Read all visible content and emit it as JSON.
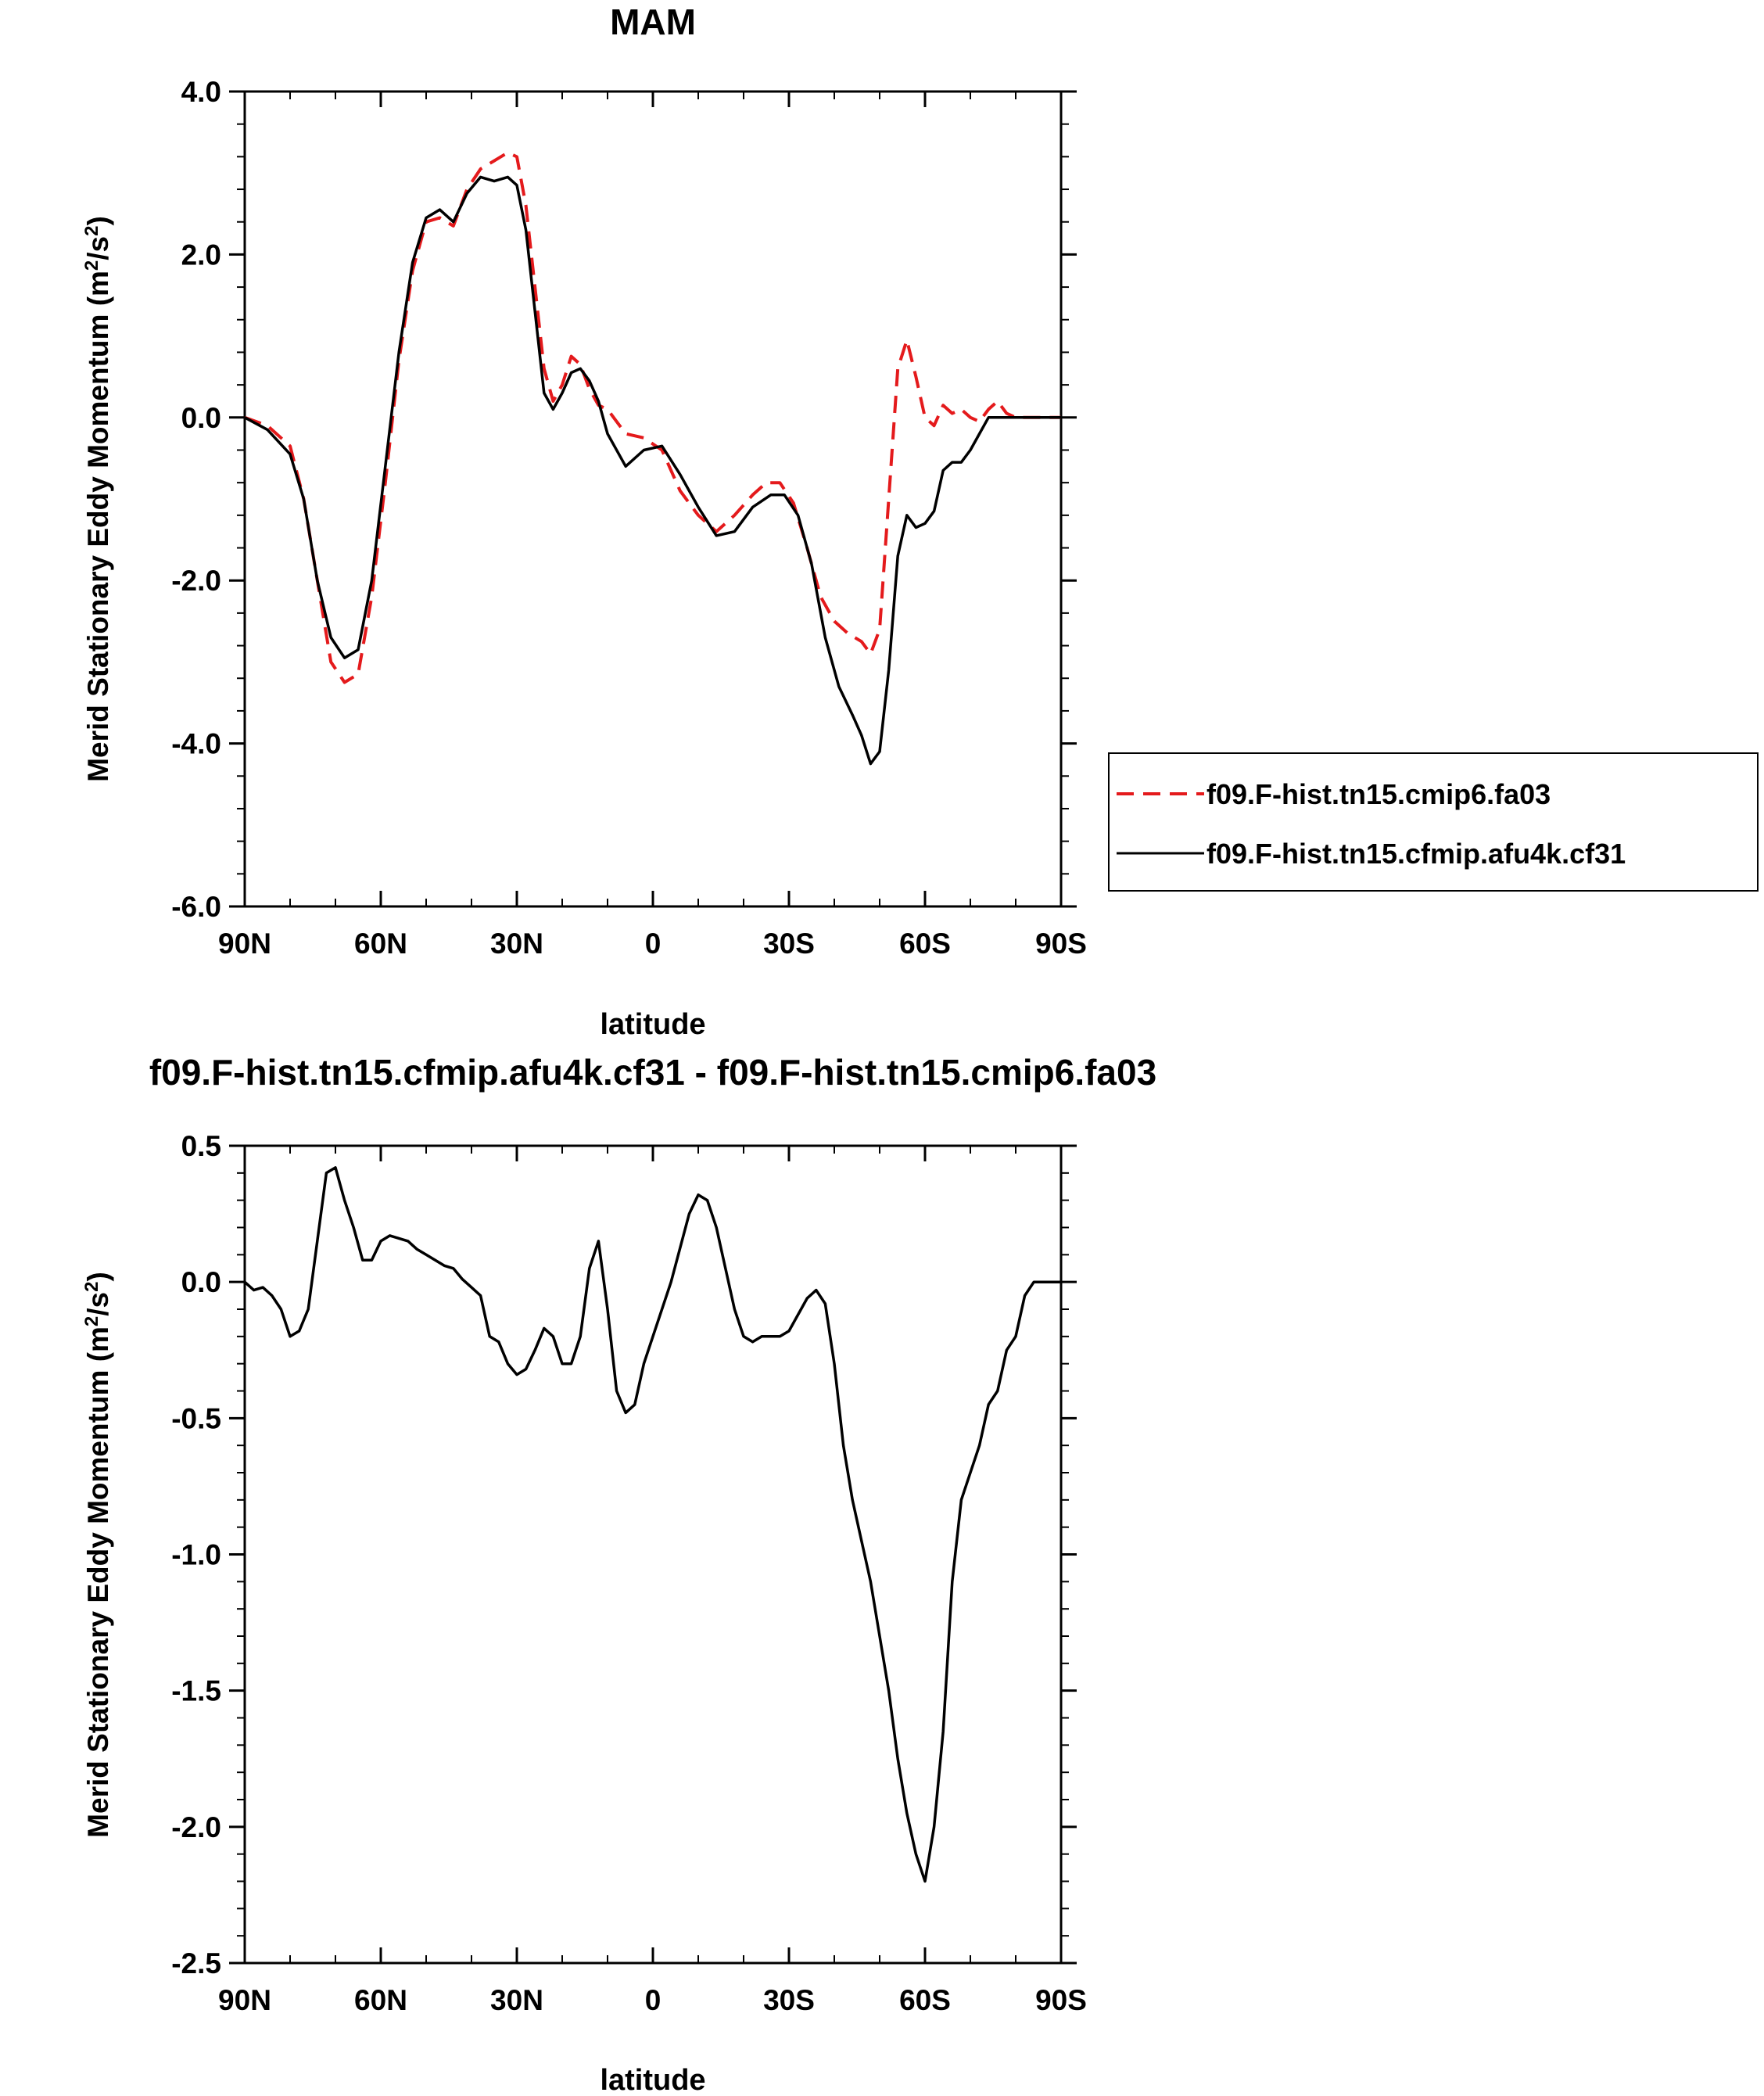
{
  "chart_data": [
    {
      "type": "line",
      "title": "MAM",
      "xlabel": "latitude",
      "ylabel": "Merid Stationary Eddy Momentum (m",
      "ylabel_sup": "2",
      "ylabel_mid": "/s",
      "ylabel_sup2": "2",
      "ylabel_end": ")",
      "xlim": [
        90,
        -90
      ],
      "ylim": [
        -6,
        4
      ],
      "x_ticks": [
        {
          "value": 90,
          "label": "90N"
        },
        {
          "value": 60,
          "label": "60N"
        },
        {
          "value": 30,
          "label": "30N"
        },
        {
          "value": 0,
          "label": "0"
        },
        {
          "value": -30,
          "label": "30S"
        },
        {
          "value": -60,
          "label": "60S"
        },
        {
          "value": -90,
          "label": "90S"
        }
      ],
      "y_ticks": [
        {
          "value": 4,
          "label": "4.0"
        },
        {
          "value": 2,
          "label": "2.0"
        },
        {
          "value": 0,
          "label": "0.0"
        },
        {
          "value": -2,
          "label": "-2.0"
        },
        {
          "value": -4,
          "label": "-4.0"
        },
        {
          "value": -6,
          "label": "-6.0"
        }
      ],
      "legend_position": "right",
      "series": [
        {
          "name": "f09.F-hist.tn15.cmip6.fa03",
          "color": "#e41a1c",
          "style": "dashed",
          "points": [
            [
              90,
              0.0
            ],
            [
              85,
              -0.1
            ],
            [
              80,
              -0.35
            ],
            [
              77,
              -1.0
            ],
            [
              74,
              -2.0
            ],
            [
              71,
              -3.0
            ],
            [
              68,
              -3.25
            ],
            [
              65,
              -3.15
            ],
            [
              62,
              -2.2
            ],
            [
              59,
              -0.8
            ],
            [
              56,
              0.7
            ],
            [
              53,
              1.8
            ],
            [
              50,
              2.4
            ],
            [
              47,
              2.45
            ],
            [
              44,
              2.35
            ],
            [
              41,
              2.8
            ],
            [
              38,
              3.05
            ],
            [
              35,
              3.15
            ],
            [
              32,
              3.25
            ],
            [
              30,
              3.2
            ],
            [
              28,
              2.6
            ],
            [
              26,
              1.6
            ],
            [
              24,
              0.6
            ],
            [
              22,
              0.2
            ],
            [
              20,
              0.4
            ],
            [
              18,
              0.75
            ],
            [
              16,
              0.65
            ],
            [
              14,
              0.35
            ],
            [
              12,
              0.15
            ],
            [
              10,
              0.1
            ],
            [
              6,
              -0.2
            ],
            [
              2,
              -0.25
            ],
            [
              -2,
              -0.4
            ],
            [
              -6,
              -0.9
            ],
            [
              -10,
              -1.2
            ],
            [
              -14,
              -1.4
            ],
            [
              -18,
              -1.2
            ],
            [
              -22,
              -0.95
            ],
            [
              -25,
              -0.8
            ],
            [
              -28,
              -0.8
            ],
            [
              -31,
              -1.05
            ],
            [
              -34,
              -1.6
            ],
            [
              -37,
              -2.2
            ],
            [
              -40,
              -2.5
            ],
            [
              -43,
              -2.65
            ],
            [
              -46,
              -2.75
            ],
            [
              -48,
              -2.9
            ],
            [
              -50,
              -2.6
            ],
            [
              -52,
              -1.0
            ],
            [
              -54,
              0.6
            ],
            [
              -56,
              0.95
            ],
            [
              -58,
              0.5
            ],
            [
              -60,
              0.0
            ],
            [
              -62,
              -0.1
            ],
            [
              -64,
              0.15
            ],
            [
              -66,
              0.05
            ],
            [
              -68,
              0.1
            ],
            [
              -70,
              0.0
            ],
            [
              -72,
              -0.05
            ],
            [
              -74,
              0.1
            ],
            [
              -76,
              0.2
            ],
            [
              -78,
              0.05
            ],
            [
              -80,
              0.0
            ],
            [
              -90,
              0.0
            ]
          ]
        },
        {
          "name": "f09.F-hist.tn15.cfmip.afu4k.cf31",
          "color": "#000000",
          "style": "solid",
          "points": [
            [
              90,
              0.0
            ],
            [
              85,
              -0.15
            ],
            [
              80,
              -0.45
            ],
            [
              77,
              -1.0
            ],
            [
              74,
              -2.0
            ],
            [
              71,
              -2.7
            ],
            [
              68,
              -2.95
            ],
            [
              65,
              -2.85
            ],
            [
              62,
              -2.0
            ],
            [
              59,
              -0.6
            ],
            [
              56,
              0.8
            ],
            [
              53,
              1.9
            ],
            [
              50,
              2.45
            ],
            [
              47,
              2.55
            ],
            [
              44,
              2.4
            ],
            [
              41,
              2.75
            ],
            [
              38,
              2.95
            ],
            [
              35,
              2.9
            ],
            [
              32,
              2.95
            ],
            [
              30,
              2.85
            ],
            [
              28,
              2.3
            ],
            [
              26,
              1.3
            ],
            [
              24,
              0.3
            ],
            [
              22,
              0.1
            ],
            [
              20,
              0.3
            ],
            [
              18,
              0.55
            ],
            [
              16,
              0.6
            ],
            [
              14,
              0.45
            ],
            [
              12,
              0.2
            ],
            [
              10,
              -0.2
            ],
            [
              6,
              -0.6
            ],
            [
              2,
              -0.4
            ],
            [
              -2,
              -0.35
            ],
            [
              -6,
              -0.7
            ],
            [
              -10,
              -1.1
            ],
            [
              -14,
              -1.45
            ],
            [
              -18,
              -1.4
            ],
            [
              -22,
              -1.1
            ],
            [
              -26,
              -0.95
            ],
            [
              -29,
              -0.95
            ],
            [
              -32,
              -1.2
            ],
            [
              -35,
              -1.8
            ],
            [
              -38,
              -2.7
            ],
            [
              -41,
              -3.3
            ],
            [
              -44,
              -3.65
            ],
            [
              -46,
              -3.9
            ],
            [
              -48,
              -4.25
            ],
            [
              -50,
              -4.1
            ],
            [
              -52,
              -3.1
            ],
            [
              -54,
              -1.7
            ],
            [
              -56,
              -1.2
            ],
            [
              -58,
              -1.35
            ],
            [
              -60,
              -1.3
            ],
            [
              -62,
              -1.15
            ],
            [
              -64,
              -0.65
            ],
            [
              -66,
              -0.55
            ],
            [
              -68,
              -0.55
            ],
            [
              -70,
              -0.4
            ],
            [
              -72,
              -0.2
            ],
            [
              -74,
              0.0
            ],
            [
              -90,
              0.0
            ]
          ]
        }
      ]
    },
    {
      "type": "line",
      "title": "f09.F-hist.tn15.cfmip.afu4k.cf31 - f09.F-hist.tn15.cmip6.fa03",
      "xlabel": "latitude",
      "ylabel": "Merid Stationary Eddy Momentum (m",
      "ylabel_sup": "2",
      "ylabel_mid": "/s",
      "ylabel_sup2": "2",
      "ylabel_end": ")",
      "xlim": [
        90,
        -90
      ],
      "ylim": [
        -2.5,
        0.5
      ],
      "x_ticks": [
        {
          "value": 90,
          "label": "90N"
        },
        {
          "value": 60,
          "label": "60N"
        },
        {
          "value": 30,
          "label": "30N"
        },
        {
          "value": 0,
          "label": "0"
        },
        {
          "value": -30,
          "label": "30S"
        },
        {
          "value": -60,
          "label": "60S"
        },
        {
          "value": -90,
          "label": "90S"
        }
      ],
      "y_ticks": [
        {
          "value": 0.5,
          "label": "0.5"
        },
        {
          "value": 0.0,
          "label": "0.0"
        },
        {
          "value": -0.5,
          "label": "-0.5"
        },
        {
          "value": -1.0,
          "label": "-1.0"
        },
        {
          "value": -1.5,
          "label": "-1.5"
        },
        {
          "value": -2.0,
          "label": "-2.0"
        },
        {
          "value": -2.5,
          "label": "-2.5"
        }
      ],
      "series": [
        {
          "color": "#000000",
          "style": "solid",
          "points": [
            [
              90,
              0.0
            ],
            [
              88,
              -0.03
            ],
            [
              86,
              -0.02
            ],
            [
              84,
              -0.05
            ],
            [
              82,
              -0.1
            ],
            [
              80,
              -0.2
            ],
            [
              78,
              -0.18
            ],
            [
              76,
              -0.1
            ],
            [
              74,
              0.15
            ],
            [
              72,
              0.4
            ],
            [
              70,
              0.42
            ],
            [
              68,
              0.3
            ],
            [
              66,
              0.2
            ],
            [
              64,
              0.08
            ],
            [
              62,
              0.08
            ],
            [
              60,
              0.15
            ],
            [
              58,
              0.17
            ],
            [
              56,
              0.16
            ],
            [
              54,
              0.15
            ],
            [
              52,
              0.12
            ],
            [
              50,
              0.1
            ],
            [
              48,
              0.08
            ],
            [
              46,
              0.06
            ],
            [
              44,
              0.05
            ],
            [
              42,
              0.01
            ],
            [
              40,
              -0.02
            ],
            [
              38,
              -0.05
            ],
            [
              36,
              -0.2
            ],
            [
              34,
              -0.22
            ],
            [
              32,
              -0.3
            ],
            [
              30,
              -0.34
            ],
            [
              28,
              -0.32
            ],
            [
              26,
              -0.25
            ],
            [
              24,
              -0.17
            ],
            [
              22,
              -0.2
            ],
            [
              20,
              -0.3
            ],
            [
              18,
              -0.3
            ],
            [
              16,
              -0.2
            ],
            [
              14,
              0.05
            ],
            [
              12,
              0.15
            ],
            [
              10,
              -0.1
            ],
            [
              8,
              -0.4
            ],
            [
              6,
              -0.48
            ],
            [
              4,
              -0.45
            ],
            [
              2,
              -0.3
            ],
            [
              0,
              -0.2
            ],
            [
              -4,
              0.0
            ],
            [
              -8,
              0.25
            ],
            [
              -10,
              0.32
            ],
            [
              -12,
              0.3
            ],
            [
              -14,
              0.2
            ],
            [
              -16,
              0.05
            ],
            [
              -18,
              -0.1
            ],
            [
              -20,
              -0.2
            ],
            [
              -22,
              -0.22
            ],
            [
              -24,
              -0.2
            ],
            [
              -28,
              -0.2
            ],
            [
              -30,
              -0.18
            ],
            [
              -32,
              -0.12
            ],
            [
              -34,
              -0.06
            ],
            [
              -36,
              -0.03
            ],
            [
              -38,
              -0.08
            ],
            [
              -40,
              -0.3
            ],
            [
              -42,
              -0.6
            ],
            [
              -44,
              -0.8
            ],
            [
              -46,
              -0.95
            ],
            [
              -48,
              -1.1
            ],
            [
              -50,
              -1.3
            ],
            [
              -52,
              -1.5
            ],
            [
              -54,
              -1.75
            ],
            [
              -56,
              -1.95
            ],
            [
              -58,
              -2.1
            ],
            [
              -60,
              -2.2
            ],
            [
              -62,
              -2.0
            ],
            [
              -64,
              -1.65
            ],
            [
              -66,
              -1.1
            ],
            [
              -68,
              -0.8
            ],
            [
              -70,
              -0.7
            ],
            [
              -72,
              -0.6
            ],
            [
              -74,
              -0.45
            ],
            [
              -76,
              -0.4
            ],
            [
              -78,
              -0.25
            ],
            [
              -80,
              -0.2
            ],
            [
              -82,
              -0.05
            ],
            [
              -84,
              0.0
            ],
            [
              -90,
              0.0
            ]
          ]
        }
      ]
    }
  ]
}
